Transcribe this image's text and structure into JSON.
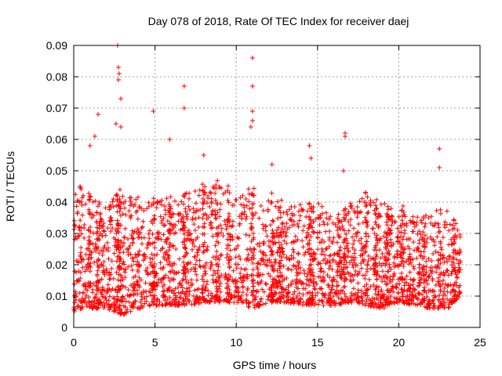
{
  "chart_data": {
    "type": "scatter",
    "title": "Day 078 of 2018, Rate Of TEC Index for receiver daej",
    "xlabel": "GPS time / hours",
    "ylabel": "ROTI / TECUs",
    "xlim": [
      0,
      25
    ],
    "ylim": [
      0,
      0.09
    ],
    "xticks": [
      0,
      5,
      10,
      15,
      20,
      25
    ],
    "xtick_labels": [
      "0",
      "5",
      "10",
      "15",
      "20",
      "25"
    ],
    "yticks": [
      0,
      0.01,
      0.02,
      0.03,
      0.04,
      0.05,
      0.06,
      0.07,
      0.08,
      0.09
    ],
    "ytick_labels": [
      "0",
      "0.01",
      "0.02",
      "0.03",
      "0.04",
      "0.05",
      "0.06",
      "0.07",
      "0.08",
      "0.09"
    ],
    "grid": true,
    "marker": "+",
    "marker_color": "#ff0000",
    "data_x_range": [
      0,
      23.8
    ],
    "series": [
      {
        "name": "ROTI",
        "approx_profile": [
          {
            "x": 0.0,
            "y_low": 0.005,
            "y_high": 0.045
          },
          {
            "x": 1.0,
            "y_low": 0.006,
            "y_high": 0.042
          },
          {
            "x": 2.0,
            "y_low": 0.006,
            "y_high": 0.038
          },
          {
            "x": 3.0,
            "y_low": 0.004,
            "y_high": 0.045
          },
          {
            "x": 4.0,
            "y_low": 0.006,
            "y_high": 0.04
          },
          {
            "x": 5.0,
            "y_low": 0.007,
            "y_high": 0.04
          },
          {
            "x": 6.0,
            "y_low": 0.007,
            "y_high": 0.042
          },
          {
            "x": 7.0,
            "y_low": 0.007,
            "y_high": 0.043
          },
          {
            "x": 8.0,
            "y_low": 0.008,
            "y_high": 0.045
          },
          {
            "x": 9.0,
            "y_low": 0.008,
            "y_high": 0.045
          },
          {
            "x": 10.0,
            "y_low": 0.008,
            "y_high": 0.042
          },
          {
            "x": 11.0,
            "y_low": 0.006,
            "y_high": 0.045
          },
          {
            "x": 12.0,
            "y_low": 0.008,
            "y_high": 0.043
          },
          {
            "x": 13.0,
            "y_low": 0.008,
            "y_high": 0.038
          },
          {
            "x": 14.0,
            "y_low": 0.007,
            "y_high": 0.04
          },
          {
            "x": 15.0,
            "y_low": 0.007,
            "y_high": 0.04
          },
          {
            "x": 16.0,
            "y_low": 0.007,
            "y_high": 0.036
          },
          {
            "x": 17.0,
            "y_low": 0.008,
            "y_high": 0.04
          },
          {
            "x": 18.0,
            "y_low": 0.007,
            "y_high": 0.042
          },
          {
            "x": 19.0,
            "y_low": 0.006,
            "y_high": 0.04
          },
          {
            "x": 20.0,
            "y_low": 0.008,
            "y_high": 0.038
          },
          {
            "x": 21.0,
            "y_low": 0.007,
            "y_high": 0.036
          },
          {
            "x": 22.0,
            "y_low": 0.006,
            "y_high": 0.036
          },
          {
            "x": 23.0,
            "y_low": 0.006,
            "y_high": 0.04
          },
          {
            "x": 23.8,
            "y_low": 0.01,
            "y_high": 0.03
          }
        ],
        "notable_points": [
          {
            "x": 2.7,
            "y": 0.09
          },
          {
            "x": 2.75,
            "y": 0.083
          },
          {
            "x": 2.8,
            "y": 0.081
          },
          {
            "x": 2.75,
            "y": 0.079
          },
          {
            "x": 2.9,
            "y": 0.073
          },
          {
            "x": 1.5,
            "y": 0.068
          },
          {
            "x": 2.6,
            "y": 0.065
          },
          {
            "x": 2.9,
            "y": 0.064
          },
          {
            "x": 4.9,
            "y": 0.069
          },
          {
            "x": 5.9,
            "y": 0.06
          },
          {
            "x": 6.8,
            "y": 0.077
          },
          {
            "x": 6.8,
            "y": 0.07
          },
          {
            "x": 11.0,
            "y": 0.086
          },
          {
            "x": 11.0,
            "y": 0.077
          },
          {
            "x": 11.0,
            "y": 0.069
          },
          {
            "x": 11.0,
            "y": 0.066
          },
          {
            "x": 10.9,
            "y": 0.064
          },
          {
            "x": 14.5,
            "y": 0.058
          },
          {
            "x": 14.6,
            "y": 0.054
          },
          {
            "x": 16.7,
            "y": 0.062
          },
          {
            "x": 16.7,
            "y": 0.061
          },
          {
            "x": 22.5,
            "y": 0.057
          },
          {
            "x": 22.5,
            "y": 0.051
          },
          {
            "x": 16.6,
            "y": 0.05
          },
          {
            "x": 12.2,
            "y": 0.052
          },
          {
            "x": 8.0,
            "y": 0.055
          },
          {
            "x": 1.0,
            "y": 0.058
          },
          {
            "x": 1.3,
            "y": 0.061
          }
        ]
      }
    ]
  }
}
